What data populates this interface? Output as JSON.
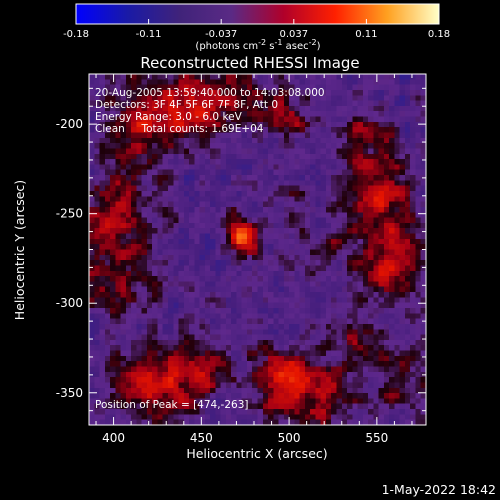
{
  "chart_data": {
    "type": "heatmap",
    "title": "Reconstructed RHESSI Image",
    "xlabel": "Heliocentric X (arcsec)",
    "ylabel": "Heliocentric Y (arcsec)",
    "xlim": [
      386,
      578
    ],
    "ylim": [
      -368,
      -172
    ],
    "xticks": [
      400,
      450,
      500,
      550
    ],
    "yticks": [
      -200,
      -250,
      -300,
      -350
    ],
    "colorbar": {
      "min": -0.18,
      "max": 0.18,
      "ticks": [
        "-0.18",
        "-0.11",
        "-0.037",
        "0.037",
        "0.11",
        "0.18"
      ],
      "label_main": "(photons cm",
      "label_exp1": "-2",
      "label_mid1": " s",
      "label_exp2": "-1",
      "label_mid2": " asec",
      "label_exp3": "-2",
      "label_end": ")",
      "colors": [
        "#0000ff",
        "#1a1aa6",
        "#40237a",
        "#5a2a85",
        "#b0002a",
        "#ff2000",
        "#ffa020",
        "#ffffc8"
      ]
    },
    "info_lines": [
      "20-Aug-2005 13:59:40.000 to 14:03:08.000",
      "Detectors: 3F 4F 5F 6F 7F 8F, Att 0",
      "Energy Range: 3.0 - 6.0 keV",
      "Clean     Total counts: 1.69E+04"
    ],
    "peak_text": "Position of Peak = [474,-263]",
    "peak": {
      "x": 474,
      "y": -263
    },
    "sources": [
      {
        "x": 474,
        "y": -263,
        "amp": 1.35,
        "sigma": 7
      },
      {
        "x": 420,
        "y": -198,
        "amp": 0.8,
        "sigma": 16
      },
      {
        "x": 445,
        "y": -188,
        "amp": 0.6,
        "sigma": 12
      },
      {
        "x": 472,
        "y": -186,
        "amp": 0.55,
        "sigma": 12
      },
      {
        "x": 500,
        "y": -196,
        "amp": 0.5,
        "sigma": 10
      },
      {
        "x": 400,
        "y": -250,
        "amp": 0.7,
        "sigma": 16
      },
      {
        "x": 398,
        "y": -290,
        "amp": 0.45,
        "sigma": 14
      },
      {
        "x": 420,
        "y": -345,
        "amp": 0.85,
        "sigma": 14
      },
      {
        "x": 450,
        "y": -338,
        "amp": 0.65,
        "sigma": 12
      },
      {
        "x": 497,
        "y": -343,
        "amp": 0.95,
        "sigma": 12
      },
      {
        "x": 520,
        "y": -352,
        "amp": 0.7,
        "sigma": 12
      },
      {
        "x": 552,
        "y": -243,
        "amp": 0.75,
        "sigma": 15
      },
      {
        "x": 560,
        "y": -280,
        "amp": 0.7,
        "sigma": 14
      },
      {
        "x": 545,
        "y": -210,
        "amp": 0.55,
        "sigma": 12
      },
      {
        "x": 540,
        "y": -322,
        "amp": 0.55,
        "sigma": 12
      },
      {
        "x": 568,
        "y": -350,
        "amp": 0.45,
        "sigma": 12
      },
      {
        "x": 515,
        "y": -272,
        "amp": 0.35,
        "sigma": 10
      },
      {
        "x": 500,
        "y": -245,
        "amp": 0.3,
        "sigma": 8
      }
    ]
  },
  "timestamp": "1-May-2022 18:42"
}
